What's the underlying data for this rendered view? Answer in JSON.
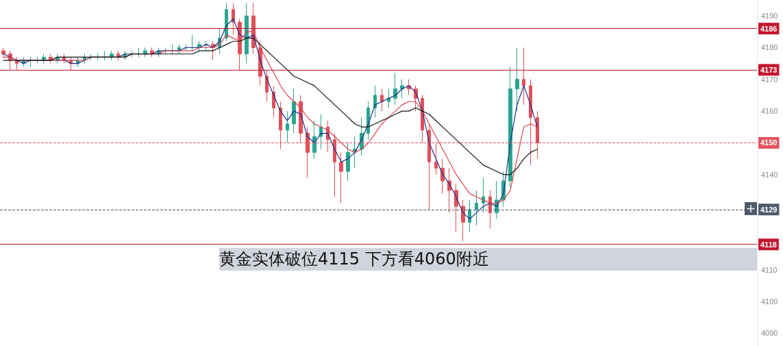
{
  "chart_data": {
    "type": "candlestick",
    "categories": [
      null,
      null,
      null,
      null,
      null,
      null,
      null,
      null,
      null,
      null,
      null,
      null,
      null,
      null,
      null,
      null,
      null,
      null,
      null,
      null,
      null,
      null,
      null,
      null,
      null,
      null,
      null,
      null,
      null,
      null,
      null,
      null,
      null,
      null,
      null,
      null,
      null,
      null,
      null,
      null,
      null,
      null,
      null,
      null,
      null,
      null,
      null,
      null,
      null,
      null,
      null,
      null,
      null,
      null,
      null,
      null,
      null,
      null,
      null,
      null,
      null,
      null,
      null,
      null,
      null,
      null,
      null,
      null,
      null,
      null,
      null,
      null,
      null,
      null,
      null,
      null,
      null,
      null,
      null,
      null,
      null,
      null,
      null,
      null,
      null,
      null,
      null,
      null,
      null,
      null,
      null,
      null,
      null,
      null,
      null,
      null,
      null,
      null,
      null,
      null,
      null,
      null,
      null,
      null,
      null,
      null,
      null,
      null,
      null,
      null,
      null,
      null
    ],
    "ohlc": [
      [
        4179,
        4180,
        4177,
        4178
      ],
      [
        4178,
        4179,
        4173,
        4176
      ],
      [
        4176,
        4177,
        4173,
        4175
      ],
      [
        4175,
        4177,
        4174,
        4176
      ],
      [
        4176,
        4177,
        4174,
        4176
      ],
      [
        4176,
        4177,
        4175,
        4176
      ],
      [
        4176,
        4178,
        4175,
        4177
      ],
      [
        4177,
        4178,
        4175,
        4176
      ],
      [
        4176,
        4178,
        4175,
        4177
      ],
      [
        4177,
        4178,
        4175,
        4176
      ],
      [
        4176,
        4177,
        4173,
        4175
      ],
      [
        4175,
        4177,
        4174,
        4176
      ],
      [
        4176,
        4178,
        4175,
        4177
      ],
      [
        4177,
        4178,
        4176,
        4177
      ],
      [
        4177,
        4178,
        4176,
        4177
      ],
      [
        4177,
        4179,
        4176,
        4177
      ],
      [
        4177,
        4179,
        4176,
        4178
      ],
      [
        4178,
        4179,
        4176,
        4177
      ],
      [
        4177,
        4179,
        4176,
        4178
      ],
      [
        4178,
        4179,
        4177,
        4178
      ],
      [
        4178,
        4180,
        4177,
        4178
      ],
      [
        4178,
        4180,
        4177,
        4179
      ],
      [
        4179,
        4180,
        4177,
        4178
      ],
      [
        4178,
        4180,
        4177,
        4179
      ],
      [
        4179,
        4180,
        4178,
        4179
      ],
      [
        4179,
        4181,
        4178,
        4179
      ],
      [
        4179,
        4181,
        4178,
        4180
      ],
      [
        4180,
        4181,
        4179,
        4180
      ],
      [
        4180,
        4184,
        4179,
        4180
      ],
      [
        4180,
        4182,
        4179,
        4181
      ],
      [
        4181,
        4182,
        4179,
        4181
      ],
      [
        4181,
        4182,
        4176,
        4180
      ],
      [
        4180,
        4186,
        4178,
        4183
      ],
      [
        4183,
        4194,
        4182,
        4192
      ],
      [
        4192,
        4194,
        4184,
        4188
      ],
      [
        4188,
        4189,
        4173,
        4178
      ],
      [
        4178,
        4194,
        4175,
        4190
      ],
      [
        4190,
        4194,
        4178,
        4180
      ],
      [
        4180,
        4182,
        4168,
        4171
      ],
      [
        4171,
        4173,
        4163,
        4166
      ],
      [
        4166,
        4168,
        4158,
        4161
      ],
      [
        4161,
        4163,
        4148,
        4154
      ],
      [
        4154,
        4160,
        4150,
        4156
      ],
      [
        4156,
        4167,
        4153,
        4163
      ],
      [
        4163,
        4165,
        4150,
        4153
      ],
      [
        4153,
        4155,
        4139,
        4147
      ],
      [
        4147,
        4157,
        4145,
        4152
      ],
      [
        4152,
        4159,
        4148,
        4155
      ],
      [
        4155,
        4157,
        4147,
        4151
      ],
      [
        4151,
        4153,
        4133,
        4144
      ],
      [
        4144,
        4147,
        4131,
        4141
      ],
      [
        4141,
        4150,
        4138,
        4147
      ],
      [
        4147,
        4152,
        4142,
        4148
      ],
      [
        4148,
        4158,
        4146,
        4153
      ],
      [
        4153,
        4163,
        4151,
        4161
      ],
      [
        4161,
        4168,
        4158,
        4165
      ],
      [
        4165,
        4167,
        4160,
        4163
      ],
      [
        4163,
        4167,
        4161,
        4164
      ],
      [
        4164,
        4172,
        4162,
        4167
      ],
      [
        4167,
        4170,
        4164,
        4168
      ],
      [
        4168,
        4170,
        4165,
        4167
      ],
      [
        4167,
        4168,
        4160,
        4164
      ],
      [
        4164,
        4165,
        4150,
        4154
      ],
      [
        4154,
        4156,
        4129,
        4144
      ],
      [
        4144,
        4150,
        4140,
        4142
      ],
      [
        4142,
        4145,
        4134,
        4138
      ],
      [
        4138,
        4142,
        4128,
        4135
      ],
      [
        4135,
        4137,
        4122,
        4130
      ],
      [
        4130,
        4132,
        4119,
        4125
      ],
      [
        4125,
        4132,
        4122,
        4129
      ],
      [
        4129,
        4135,
        4124,
        4131
      ],
      [
        4131,
        4139,
        4128,
        4133
      ],
      [
        4133,
        4135,
        4123,
        4128
      ],
      [
        4128,
        4138,
        4126,
        4132
      ],
      [
        4132,
        4141,
        4130,
        4138
      ],
      [
        4138,
        4174,
        4136,
        4167
      ],
      [
        4167,
        4180,
        4160,
        4170
      ],
      [
        4170,
        4180,
        4162,
        4168
      ],
      [
        4168,
        4170,
        4143,
        4158
      ],
      [
        4158,
        4160,
        4145,
        4150
      ],
      null,
      null,
      null,
      null,
      null,
      null,
      null,
      null,
      null,
      null,
      null,
      null,
      null,
      null,
      null,
      null,
      null,
      null,
      null,
      null,
      null,
      null,
      null,
      null,
      null,
      null,
      null,
      null,
      null,
      null,
      null,
      null
    ],
    "series": [
      {
        "type": "line",
        "color": "#1f2d8a",
        "values": [
          4178,
          4177,
          4176,
          4175,
          4176,
          4176,
          4176,
          4176,
          4176,
          4176,
          4175,
          4175,
          4176,
          4177,
          4177,
          4177,
          4177,
          4177,
          4178,
          4178,
          4178,
          4178,
          4178,
          4179,
          4179,
          4179,
          4179,
          4180,
          4180,
          4180,
          4181,
          4180,
          4182,
          4187,
          4189,
          4184,
          4183,
          4184,
          4176,
          4170,
          4165,
          4160,
          4157,
          4160,
          4159,
          4152,
          4150,
          4153,
          4153,
          4148,
          4144,
          4145,
          4147,
          4151,
          4156,
          4162,
          4163,
          4164,
          4165,
          4167,
          4168,
          4166,
          4160,
          4150,
          4145,
          4140,
          4137,
          4133,
          4128,
          4126,
          4128,
          4130,
          4131,
          4130,
          4134,
          4150,
          4162,
          4168,
          4162,
          4155,
          null,
          null,
          null,
          null,
          null,
          null,
          null,
          null,
          null,
          null,
          null,
          null,
          null,
          null,
          null,
          null,
          null,
          null,
          null,
          null,
          null,
          null,
          null,
          null,
          null,
          null,
          null,
          null,
          null,
          null,
          null,
          null
        ]
      },
      {
        "type": "line",
        "color": "#d9434f",
        "values": [
          4177,
          4177,
          4176,
          4176,
          4176,
          4176,
          4176,
          4176,
          4176,
          4176,
          4176,
          4176,
          4176,
          4177,
          4177,
          4177,
          4177,
          4177,
          4177,
          4178,
          4178,
          4178,
          4178,
          4178,
          4179,
          4179,
          4179,
          4179,
          4179,
          4180,
          4180,
          4180,
          4181,
          4184,
          4183,
          4182,
          4185,
          4185,
          4180,
          4176,
          4172,
          4168,
          4165,
          4163,
          4161,
          4158,
          4156,
          4155,
          4154,
          4152,
          4150,
          4148,
          4147,
          4148,
          4150,
          4153,
          4156,
          4158,
          4160,
          4162,
          4163,
          4163,
          4160,
          4156,
          4152,
          4148,
          4144,
          4140,
          4137,
          4134,
          4133,
          4132,
          4131,
          4131,
          4132,
          4135,
          4145,
          4155,
          4156,
          4155,
          null,
          null,
          null,
          null,
          null,
          null,
          null,
          null,
          null,
          null,
          null,
          null,
          null,
          null,
          null,
          null,
          null,
          null,
          null,
          null,
          null,
          null,
          null,
          null,
          null,
          null,
          null,
          null,
          null,
          null,
          null,
          null
        ]
      },
      {
        "type": "line",
        "color": "#111111",
        "values": [
          4176,
          4176,
          4176,
          4176,
          4176,
          4176,
          4176,
          4176,
          4177,
          4177,
          4177,
          4177,
          4177,
          4177,
          4177,
          4177,
          4177,
          4177,
          4177,
          4178,
          4178,
          4178,
          4178,
          4178,
          4178,
          4178,
          4178,
          4178,
          4178,
          4179,
          4179,
          4179,
          4180,
          4181,
          4182,
          4182,
          4183,
          4183,
          4181,
          4179,
          4177,
          4175,
          4173,
          4171,
          4170,
          4169,
          4168,
          4166,
          4164,
          4162,
          4160,
          4158,
          4156,
          4155,
          4155,
          4156,
          4157,
          4158,
          4159,
          4160,
          4160,
          4161,
          4160,
          4159,
          4157,
          4155,
          4153,
          4151,
          4149,
          4147,
          4145,
          4143,
          4142,
          4141,
          4140,
          4140,
          4142,
          4145,
          4147,
          4148,
          null,
          null,
          null,
          null,
          null,
          null,
          null,
          null,
          null,
          null,
          null,
          null,
          null,
          null,
          null,
          null,
          null,
          null,
          null,
          null,
          null,
          null,
          null,
          null,
          null,
          null,
          null,
          null,
          null,
          null,
          null,
          null
        ]
      }
    ],
    "ylim": [
      4086,
      4195
    ],
    "yticks": [
      4090,
      4100,
      4110,
      4140,
      4160,
      4170,
      4180,
      4190
    ],
    "tick_labels": "y",
    "marker": "none",
    "ref_lines": [
      {
        "axis": "y",
        "value": 4186,
        "label": "4186",
        "color": "#c3172e",
        "line_style": "solid"
      },
      {
        "axis": "y",
        "value": 4173,
        "label": "4173",
        "color": "#c3172e",
        "line_style": "solid"
      },
      {
        "axis": "y",
        "value": 4150,
        "label": "4150",
        "color": "#e5545f",
        "line_style": "dashed"
      },
      {
        "axis": "y",
        "value": 4129,
        "label": "4129",
        "color": "#4f5b6b",
        "line_style": "dashed"
      },
      {
        "axis": "y",
        "value": 4118,
        "label": "4118",
        "color": "#c3172e",
        "line_style": "solid"
      }
    ],
    "annotations": [
      "黄金实体破位4115 下方看4060附近"
    ]
  }
}
